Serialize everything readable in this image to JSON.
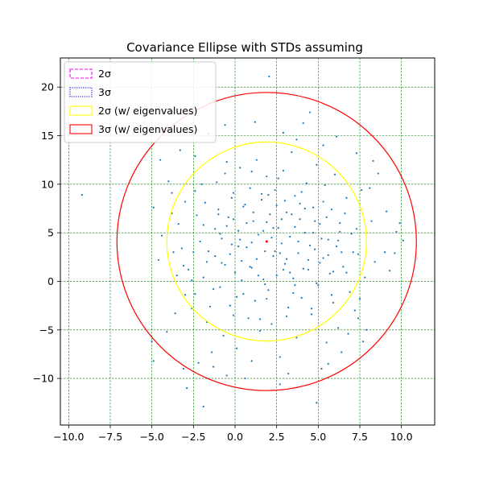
{
  "chart_data": {
    "type": "scatter",
    "title": "Covariance Ellipse with STDs assuming",
    "xlabel": "",
    "ylabel": "",
    "xlim": [
      -10.5,
      12.0
    ],
    "ylim": [
      -14.8,
      23.0
    ],
    "x_ticks": [
      -10.0,
      -7.5,
      -5.0,
      -2.5,
      0.0,
      2.5,
      5.0,
      7.5,
      10.0
    ],
    "x_tick_labels": [
      "−10.0",
      "−7.5",
      "−5.0",
      "−2.5",
      "0.0",
      "2.5",
      "5.0",
      "7.5",
      "10.0"
    ],
    "y_ticks": [
      -10,
      -5,
      0,
      5,
      10,
      15,
      20
    ],
    "y_tick_labels": [
      "−10",
      "−5",
      "0",
      "5",
      "10",
      "15",
      "20"
    ],
    "grid": true,
    "grid_color": "#008000",
    "point_color": "#1f77b4",
    "mean": {
      "x": 1.9,
      "y": 4.1,
      "color": "#ff0000"
    },
    "ellipses": [
      {
        "name": "2σ",
        "cx": 1.9,
        "cy": 4.1,
        "rx": 0.0,
        "ry": 0.0,
        "color": "#ff00ff",
        "style": "dashed"
      },
      {
        "name": "3σ",
        "cx": 1.9,
        "cy": 4.1,
        "rx": 0.0,
        "ry": 0.0,
        "color": "#0000ff",
        "style": "dotted"
      },
      {
        "name": "2σ (w/ eigenvalues)",
        "cx": 1.9,
        "cy": 4.1,
        "rx": 6.0,
        "ry": 10.25,
        "color": "#ffff00",
        "style": "solid"
      },
      {
        "name": "3σ (w/ eigenvalues)",
        "cx": 1.9,
        "cy": 4.1,
        "rx": 9.0,
        "ry": 15.35,
        "color": "#ff0000",
        "style": "solid"
      }
    ],
    "legend_position": "top-left",
    "points": [
      [
        -9.2,
        8.9
      ],
      [
        2.05,
        21.1
      ],
      [
        -4.9,
        7.6
      ],
      [
        -4.9,
        -8.2
      ],
      [
        -5.0,
        -6.2
      ],
      [
        -4.6,
        2.2
      ],
      [
        -3.2,
        3.4
      ],
      [
        -4.0,
        10.3
      ],
      [
        -3.0,
        -1.4
      ],
      [
        -2.8,
        1.2
      ],
      [
        -3.5,
        0.6
      ],
      [
        -2.6,
        -2.8
      ],
      [
        -2.2,
        -8.4
      ],
      [
        -2.5,
        3.0
      ],
      [
        -2.4,
        12.9
      ],
      [
        -2.4,
        9.3
      ],
      [
        -1.9,
        5.8
      ],
      [
        -1.9,
        0.4
      ],
      [
        -1.7,
        -4.2
      ],
      [
        -1.4,
        -7.3
      ],
      [
        -1.2,
        2.6
      ],
      [
        -1.1,
        10.2
      ],
      [
        -1.0,
        7.4
      ],
      [
        -0.9,
        -0.6
      ],
      [
        -0.8,
        4.4
      ],
      [
        -0.7,
        -5.6
      ],
      [
        -0.6,
        1.7
      ],
      [
        -0.5,
        12.3
      ],
      [
        -0.4,
        6.6
      ],
      [
        -0.3,
        -2.5
      ],
      [
        -0.2,
        3.8
      ],
      [
        -0.1,
        9.1
      ],
      [
        0.0,
        0.9
      ],
      [
        0.1,
        -6.9
      ],
      [
        0.2,
        5.2
      ],
      [
        0.3,
        11.7
      ],
      [
        0.4,
        2.1
      ],
      [
        0.5,
        -1.3
      ],
      [
        0.6,
        7.9
      ],
      [
        0.7,
        3.5
      ],
      [
        0.8,
        -3.8
      ],
      [
        0.9,
        9.6
      ],
      [
        1.0,
        1.4
      ],
      [
        1.1,
        6.2
      ],
      [
        1.2,
        -2.0
      ],
      [
        1.3,
        12.5
      ],
      [
        1.4,
        4.8
      ],
      [
        1.5,
        -5.1
      ],
      [
        1.6,
        8.4
      ],
      [
        1.7,
        0.2
      ],
      [
        1.8,
        3.1
      ],
      [
        1.9,
        10.8
      ],
      [
        2.0,
        -0.9
      ],
      [
        2.1,
        6.9
      ],
      [
        2.2,
        -4.4
      ],
      [
        2.3,
        2.6
      ],
      [
        2.4,
        9.4
      ],
      [
        2.5,
        0.6
      ],
      [
        2.6,
        5.5
      ],
      [
        2.7,
        -7.8
      ],
      [
        2.8,
        3.9
      ],
      [
        2.9,
        11.4
      ],
      [
        3.0,
        1.8
      ],
      [
        3.1,
        7.1
      ],
      [
        3.2,
        -2.7
      ],
      [
        3.3,
        4.6
      ],
      [
        3.4,
        13.3
      ],
      [
        3.5,
        0.3
      ],
      [
        3.6,
        8.8
      ],
      [
        3.7,
        -5.8
      ],
      [
        3.8,
        2.9
      ],
      [
        3.9,
        6.4
      ],
      [
        4.0,
        -1.7
      ],
      [
        4.1,
        16.3
      ],
      [
        4.2,
        5.0
      ],
      [
        4.3,
        10.1
      ],
      [
        4.4,
        1.2
      ],
      [
        4.5,
        17.4
      ],
      [
        4.6,
        -3.4
      ],
      [
        4.7,
        7.6
      ],
      [
        4.8,
        3.3
      ],
      [
        4.9,
        12.0
      ],
      [
        5.0,
        -0.4
      ],
      [
        5.1,
        5.9
      ],
      [
        5.2,
        -9.0
      ],
      [
        5.3,
        2.4
      ],
      [
        5.4,
        9.9
      ],
      [
        5.5,
        -6.3
      ],
      [
        5.6,
        4.3
      ],
      [
        5.7,
        0.8
      ],
      [
        5.8,
        7.4
      ],
      [
        5.9,
        -2.2
      ],
      [
        6.0,
        11.0
      ],
      [
        6.1,
        3.6
      ],
      [
        6.2,
        -4.8
      ],
      [
        6.3,
        6.0
      ],
      [
        6.5,
        1.5
      ],
      [
        6.7,
        8.6
      ],
      [
        6.9,
        -1.1
      ],
      [
        7.0,
        4.9
      ],
      [
        7.2,
        -3.0
      ],
      [
        7.4,
        2.8
      ],
      [
        7.6,
        9.4
      ],
      [
        7.8,
        0.4
      ],
      [
        8.2,
        6.2
      ],
      [
        8.4,
        2.0
      ],
      [
        9.0,
        3.0
      ],
      [
        9.3,
        1.1
      ],
      [
        9.6,
        2.9
      ],
      [
        9.9,
        6.0
      ],
      [
        10.1,
        4.2
      ],
      [
        8.6,
        11.1
      ],
      [
        8.1,
        9.6
      ],
      [
        7.7,
        -6.2
      ],
      [
        7.4,
        -3.8
      ],
      [
        7.5,
        -1.8
      ],
      [
        4.9,
        -12.5
      ],
      [
        2.7,
        -10.6
      ],
      [
        -1.3,
        -8.8
      ],
      [
        -2.9,
        -11.0
      ],
      [
        -1.9,
        -12.9
      ],
      [
        -3.1,
        -9.0
      ],
      [
        -0.5,
        -9.7
      ],
      [
        0.6,
        -10.0
      ],
      [
        1.0,
        -8.2
      ],
      [
        3.2,
        -9.5
      ],
      [
        5.6,
        -8.5
      ],
      [
        6.4,
        -7.3
      ],
      [
        6.8,
        -5.4
      ],
      [
        7.9,
        -5.0
      ],
      [
        -4.1,
        -5.2
      ],
      [
        -3.6,
        -3.3
      ],
      [
        -4.4,
        4.7
      ],
      [
        -4.5,
        12.5
      ],
      [
        -3.8,
        7.0
      ],
      [
        -3.3,
        13.5
      ],
      [
        -1.6,
        15.2
      ],
      [
        -0.6,
        16.1
      ],
      [
        1.2,
        16.4
      ],
      [
        2.9,
        15.3
      ],
      [
        3.7,
        14.6
      ],
      [
        5.3,
        14.0
      ],
      [
        6.1,
        14.9
      ],
      [
        7.3,
        13.2
      ],
      [
        8.3,
        12.4
      ],
      [
        9.1,
        7.2
      ],
      [
        9.7,
        5.1
      ],
      [
        -0.8,
        1.9
      ],
      [
        0.9,
        1.5
      ],
      [
        2.4,
        3.1
      ],
      [
        3.1,
        2.3
      ],
      [
        1.7,
        5.2
      ],
      [
        0.3,
        4.3
      ],
      [
        -1.6,
        3.1
      ],
      [
        4.5,
        3.7
      ],
      [
        5.1,
        1.9
      ],
      [
        3.6,
        5.6
      ],
      [
        2.8,
        6.4
      ],
      [
        1.1,
        7.1
      ],
      [
        -0.1,
        6.4
      ],
      [
        -1.2,
        5.4
      ],
      [
        -2.1,
        4.1
      ],
      [
        -2.3,
        6.8
      ],
      [
        -1.8,
        8.1
      ],
      [
        -0.2,
        8.6
      ],
      [
        1.6,
        9.0
      ],
      [
        3.0,
        8.3
      ],
      [
        4.2,
        7.5
      ],
      [
        5.5,
        6.6
      ],
      [
        6.3,
        5.1
      ],
      [
        6.4,
        3.0
      ],
      [
        5.9,
        1.0
      ],
      [
        4.9,
        -0.2
      ],
      [
        3.5,
        -1.2
      ],
      [
        1.9,
        -1.8
      ],
      [
        0.1,
        -1.6
      ],
      [
        -1.3,
        -0.8
      ],
      [
        -2.6,
        0.1
      ],
      [
        -3.1,
        1.6
      ],
      [
        -3.4,
        5.9
      ],
      [
        -3.0,
        8.2
      ],
      [
        -2.0,
        10.0
      ],
      [
        -0.6,
        11.1
      ],
      [
        1.0,
        11.3
      ],
      [
        2.6,
        10.6
      ],
      [
        4.0,
        9.2
      ],
      [
        5.3,
        8.2
      ],
      [
        6.6,
        7.0
      ],
      [
        7.3,
        5.4
      ],
      [
        7.1,
        3.0
      ],
      [
        6.7,
        0.9
      ],
      [
        5.8,
        -1.4
      ],
      [
        4.6,
        -2.8
      ],
      [
        3.1,
        -3.6
      ],
      [
        1.5,
        -3.9
      ],
      [
        -0.1,
        -3.5
      ],
      [
        -1.5,
        -2.6
      ],
      [
        -2.4,
        -1.3
      ],
      [
        -3.7,
        3.0
      ],
      [
        -3.8,
        9.1
      ],
      [
        0.4,
        0.1
      ],
      [
        1.3,
        2.3
      ],
      [
        2.2,
        4.5
      ],
      [
        3.3,
        0.9
      ],
      [
        4.4,
        2.2
      ],
      [
        -0.3,
        2.8
      ],
      [
        1.9,
        6.1
      ],
      [
        2.5,
        7.8
      ],
      [
        3.8,
        4.1
      ],
      [
        0.7,
        6.0
      ],
      [
        -1.0,
        6.9
      ],
      [
        2.0,
        8.9
      ],
      [
        4.7,
        5.0
      ],
      [
        1.4,
        0.6
      ],
      [
        3.6,
        -0.4
      ],
      [
        0.2,
        3.6
      ],
      [
        2.9,
        1.2
      ],
      [
        5.2,
        4.4
      ],
      [
        -0.9,
        4.9
      ],
      [
        1.8,
        -0.3
      ],
      [
        4.1,
        1.3
      ],
      [
        2.7,
        2.9
      ],
      [
        0.5,
        7.7
      ],
      [
        3.4,
        6.9
      ],
      [
        -1.7,
        2.0
      ],
      [
        6.2,
        4.2
      ],
      [
        5.6,
        2.7
      ],
      [
        1.0,
        4.0
      ],
      [
        3.9,
        8.0
      ],
      [
        2.3,
        5.5
      ],
      [
        -0.5,
        5.7
      ],
      [
        4.8,
        6.2
      ]
    ]
  }
}
